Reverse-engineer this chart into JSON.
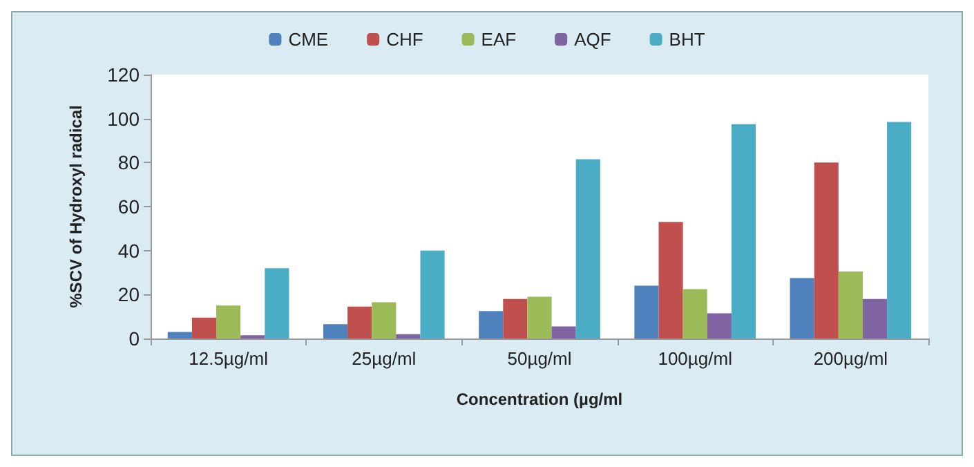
{
  "chart_data": {
    "type": "bar",
    "xlabel": "Concentration (µg/ml",
    "ylabel": "%SCV of Hydroxyl radical",
    "categories": [
      "12.5µg/ml",
      "25µg/ml",
      "50µg/ml",
      "100µg/ml",
      "200µg/ml"
    ],
    "series": [
      {
        "name": "CME",
        "color": "#4f81bd",
        "values": [
          3,
          6.5,
          12.5,
          24,
          27.5
        ]
      },
      {
        "name": "CHF",
        "color": "#c0504d",
        "values": [
          9.5,
          14.5,
          18,
          53,
          80
        ]
      },
      {
        "name": "EAF",
        "color": "#9bbb59",
        "values": [
          15,
          16.5,
          19,
          22.5,
          30.5
        ]
      },
      {
        "name": "AQF",
        "color": "#8064a2",
        "values": [
          1.5,
          2,
          5.5,
          11.5,
          18
        ]
      },
      {
        "name": "BHT",
        "color": "#4bacc6",
        "values": [
          32,
          40,
          81.5,
          97.5,
          98.5
        ]
      }
    ],
    "ylim": [
      0,
      120
    ],
    "yticks": [
      0,
      20,
      40,
      60,
      80,
      100,
      120
    ],
    "grid": false,
    "legend": "top"
  }
}
